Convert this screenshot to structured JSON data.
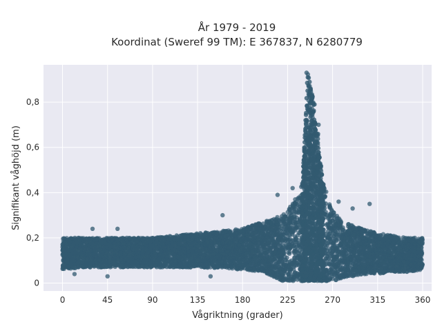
{
  "chart_data": {
    "type": "scatter",
    "title_line1": "År 1979 - 2019",
    "title_line2": "Koordinat (Sweref 99 TM): E 367837, N 6280779",
    "xlabel": "Vågriktning (grader)",
    "ylabel": "Signifikant våghöjd (m)",
    "xlim": [
      -19,
      369
    ],
    "ylim": [
      -0.035,
      0.965
    ],
    "x_ticks": [
      0,
      45,
      90,
      135,
      180,
      225,
      270,
      315,
      360
    ],
    "x_tick_labels": [
      "0",
      "45",
      "90",
      "135",
      "180",
      "225",
      "270",
      "315",
      "360"
    ],
    "y_ticks": [
      0,
      0.2,
      0.4,
      0.6,
      0.8
    ],
    "y_tick_labels": [
      "0",
      "0,2",
      "0,4",
      "0,6",
      "0,8"
    ],
    "grid": true,
    "marker_color": "#325a70",
    "plot_background": "#e9e9f2",
    "envelope": {
      "description_x_deg": [
        0,
        20,
        45,
        90,
        135,
        180,
        200,
        220,
        230,
        240,
        245,
        250,
        255,
        260,
        270,
        280,
        300,
        315,
        330,
        345,
        360
      ],
      "lower_m": [
        0.06,
        0.07,
        0.07,
        0.07,
        0.07,
        0.06,
        0.05,
        0.01,
        0.01,
        0.01,
        0.01,
        0.01,
        0.01,
        0.01,
        0.01,
        0.02,
        0.04,
        0.04,
        0.05,
        0.05,
        0.06
      ],
      "upper_m": [
        0.2,
        0.2,
        0.2,
        0.2,
        0.22,
        0.24,
        0.27,
        0.3,
        0.35,
        0.45,
        0.93,
        0.83,
        0.68,
        0.45,
        0.32,
        0.27,
        0.24,
        0.22,
        0.21,
        0.2,
        0.2
      ]
    },
    "notable_points": [
      {
        "x": 244,
        "y": 0.93
      },
      {
        "x": 248,
        "y": 0.86
      },
      {
        "x": 252,
        "y": 0.79
      },
      {
        "x": 256,
        "y": 0.7
      },
      {
        "x": 215,
        "y": 0.39
      },
      {
        "x": 230,
        "y": 0.42
      },
      {
        "x": 276,
        "y": 0.36
      },
      {
        "x": 290,
        "y": 0.33
      },
      {
        "x": 307,
        "y": 0.35
      },
      {
        "x": 160,
        "y": 0.3
      },
      {
        "x": 30,
        "y": 0.24
      },
      {
        "x": 55,
        "y": 0.24
      },
      {
        "x": 12,
        "y": 0.04
      },
      {
        "x": 45,
        "y": 0.03
      },
      {
        "x": 148,
        "y": 0.03
      }
    ]
  }
}
